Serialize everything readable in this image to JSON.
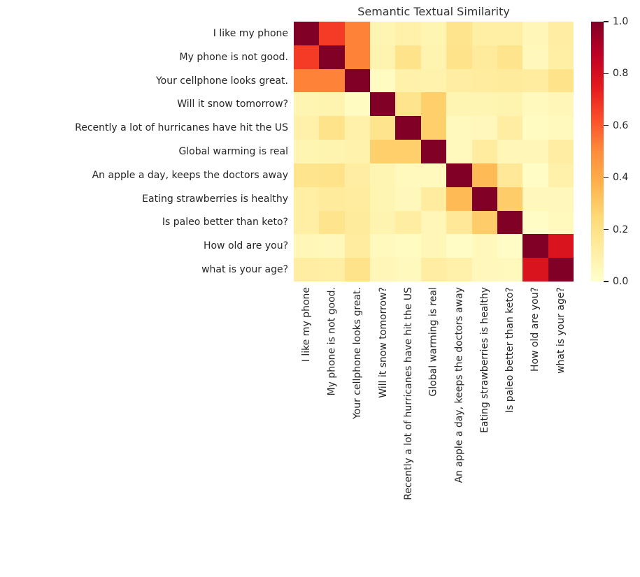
{
  "figure": {
    "background": "#ffffff",
    "text_color": "#262626",
    "title_color": "#333333"
  },
  "chart_data": {
    "type": "heatmap",
    "title": "Semantic Textual Similarity",
    "colormap": "YlOrRd",
    "colormap_stops": [
      "#ffffcc",
      "#ffeda0",
      "#fed976",
      "#feb24c",
      "#fd8d3c",
      "#fc4e2a",
      "#e31a1c",
      "#bd0026",
      "#800026"
    ],
    "vmin": 0.0,
    "vmax": 1.0,
    "legend_position": "right",
    "grid": false,
    "labels": [
      "I like my phone",
      "My phone is not good.",
      "Your cellphone looks great.",
      "Will it snow tomorrow?",
      "Recently a lot of hurricanes have hit the US",
      "Global warming is real",
      "An apple a day, keeps the doctors away",
      "Eating strawberries is healthy",
      "Is paleo better than keto?",
      "How old are you?",
      "what is your age?"
    ],
    "matrix": [
      [
        1.0,
        0.67,
        0.52,
        0.07,
        0.1,
        0.07,
        0.18,
        0.11,
        0.11,
        0.06,
        0.12
      ],
      [
        0.67,
        1.0,
        0.52,
        0.08,
        0.19,
        0.08,
        0.19,
        0.14,
        0.18,
        0.05,
        0.11
      ],
      [
        0.52,
        0.52,
        1.0,
        0.03,
        0.1,
        0.09,
        0.12,
        0.13,
        0.14,
        0.13,
        0.19
      ],
      [
        0.07,
        0.08,
        0.03,
        1.0,
        0.18,
        0.28,
        0.07,
        0.07,
        0.08,
        0.04,
        0.06
      ],
      [
        0.1,
        0.19,
        0.1,
        0.18,
        1.0,
        0.28,
        0.04,
        0.05,
        0.12,
        0.03,
        0.04
      ],
      [
        0.07,
        0.08,
        0.09,
        0.28,
        0.28,
        1.0,
        0.04,
        0.13,
        0.06,
        0.06,
        0.12
      ],
      [
        0.18,
        0.19,
        0.12,
        0.07,
        0.04,
        0.04,
        1.0,
        0.35,
        0.15,
        0.02,
        0.1
      ],
      [
        0.11,
        0.14,
        0.13,
        0.07,
        0.05,
        0.13,
        0.35,
        1.0,
        0.29,
        0.05,
        0.05
      ],
      [
        0.11,
        0.18,
        0.14,
        0.08,
        0.12,
        0.06,
        0.15,
        0.29,
        1.0,
        0.02,
        0.04
      ],
      [
        0.06,
        0.05,
        0.13,
        0.04,
        0.03,
        0.06,
        0.02,
        0.05,
        0.02,
        1.0,
        0.78
      ],
      [
        0.12,
        0.11,
        0.19,
        0.06,
        0.04,
        0.12,
        0.1,
        0.05,
        0.04,
        0.78,
        1.0
      ]
    ],
    "colorbar": {
      "ticks": [
        "1.0",
        "0.8",
        "0.6",
        "0.4",
        "0.2",
        "0.0"
      ],
      "tick_values": [
        1.0,
        0.8,
        0.6,
        0.4,
        0.2,
        0.0
      ]
    }
  }
}
